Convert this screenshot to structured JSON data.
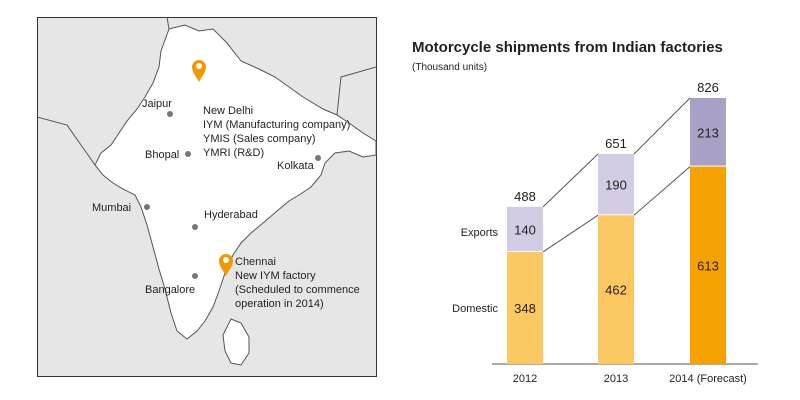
{
  "map": {
    "cities": [
      {
        "name": "Jaipur"
      },
      {
        "name": "Bhopal"
      },
      {
        "name": "Kolkata"
      },
      {
        "name": "Mumbai"
      },
      {
        "name": "Hyderabad"
      },
      {
        "name": "Bangalore"
      }
    ],
    "markers": [
      {
        "lines": [
          "New Delhi",
          "IYM (Manufacturing company)",
          "YMIS (Sales company)",
          "YMRI (R&D)"
        ]
      },
      {
        "lines": [
          "Chennai",
          "New IYM factory",
          "(Scheduled to commence",
          "operation in 2014)"
        ]
      }
    ],
    "colors": {
      "land": "#ffffff",
      "outside": "#e6e6e6",
      "border": "#555555",
      "pin": "#f39800",
      "dot": "#777777"
    }
  },
  "chart_data": {
    "type": "bar",
    "stacked": true,
    "title": "Motorcycle shipments from Indian factories",
    "subtitle": "(Thousand units)",
    "categories": [
      "2012",
      "2013",
      "2014 (Forecast)"
    ],
    "series": [
      {
        "name": "Domestic",
        "values": [
          348,
          462,
          613
        ]
      },
      {
        "name": "Exports",
        "values": [
          140,
          190,
          213
        ]
      }
    ],
    "totals": [
      488,
      651,
      826
    ],
    "ylim": [
      0,
      826
    ],
    "grid": false,
    "colors": {
      "domestic": "#fbc862",
      "exports": "#d2cde4",
      "domestic_forecast": "#f5a200",
      "exports_forecast": "#a9a0c8",
      "connector": "#555555"
    }
  }
}
